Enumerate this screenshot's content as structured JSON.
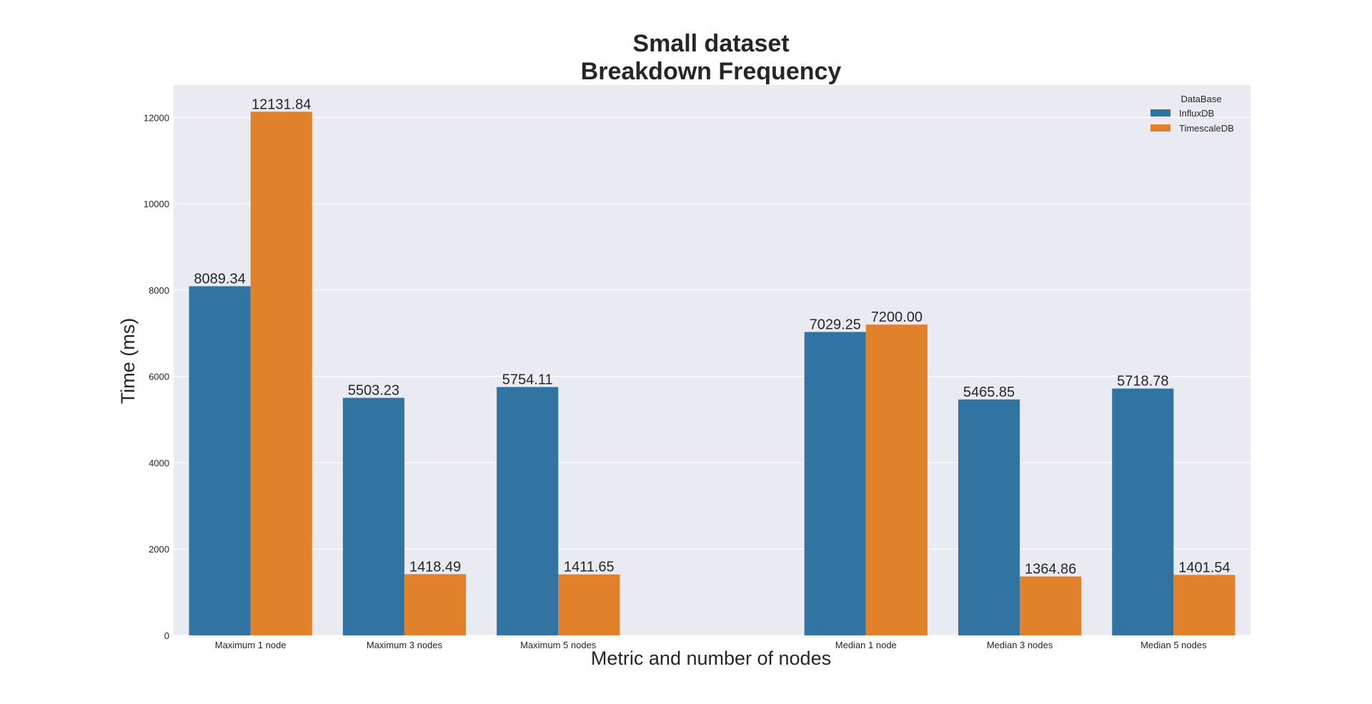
{
  "chart_data": {
    "type": "bar",
    "title": "Small dataset",
    "subtitle": "Breakdown Frequency",
    "xlabel": "Metric and number of nodes",
    "ylabel": "Time (ms)",
    "ylim": [
      0,
      12750
    ],
    "yticks": [
      0,
      2000,
      4000,
      6000,
      8000,
      10000,
      12000
    ],
    "grid": true,
    "legend": {
      "title": "DataBase",
      "placement": "top-right"
    },
    "categories": [
      "Maximum 1 node",
      "Maximum 3 nodes",
      "Maximum 5 nodes",
      "",
      "Median 1 node",
      "Median 3 nodes",
      "Median 5 nodes"
    ],
    "series": [
      {
        "name": "InfluxDB",
        "color": "#3274a1",
        "values": [
          8089.34,
          5503.23,
          5754.11,
          null,
          7029.25,
          5465.85,
          5718.78
        ],
        "labels": [
          "8089.34",
          "5503.23",
          "5754.11",
          "",
          "7029.25",
          "5465.85",
          "5718.78"
        ]
      },
      {
        "name": "TimescaleDB",
        "color": "#e1812c",
        "values": [
          12131.84,
          1418.49,
          1411.65,
          null,
          7200.0,
          1364.86,
          1401.54
        ],
        "labels": [
          "12131.84",
          "1418.49",
          "1411.65",
          "",
          "7200.00",
          "1364.86",
          "1401.54"
        ]
      }
    ],
    "plot_background": "#eaeaf2",
    "grid_color": "#ffffff"
  }
}
